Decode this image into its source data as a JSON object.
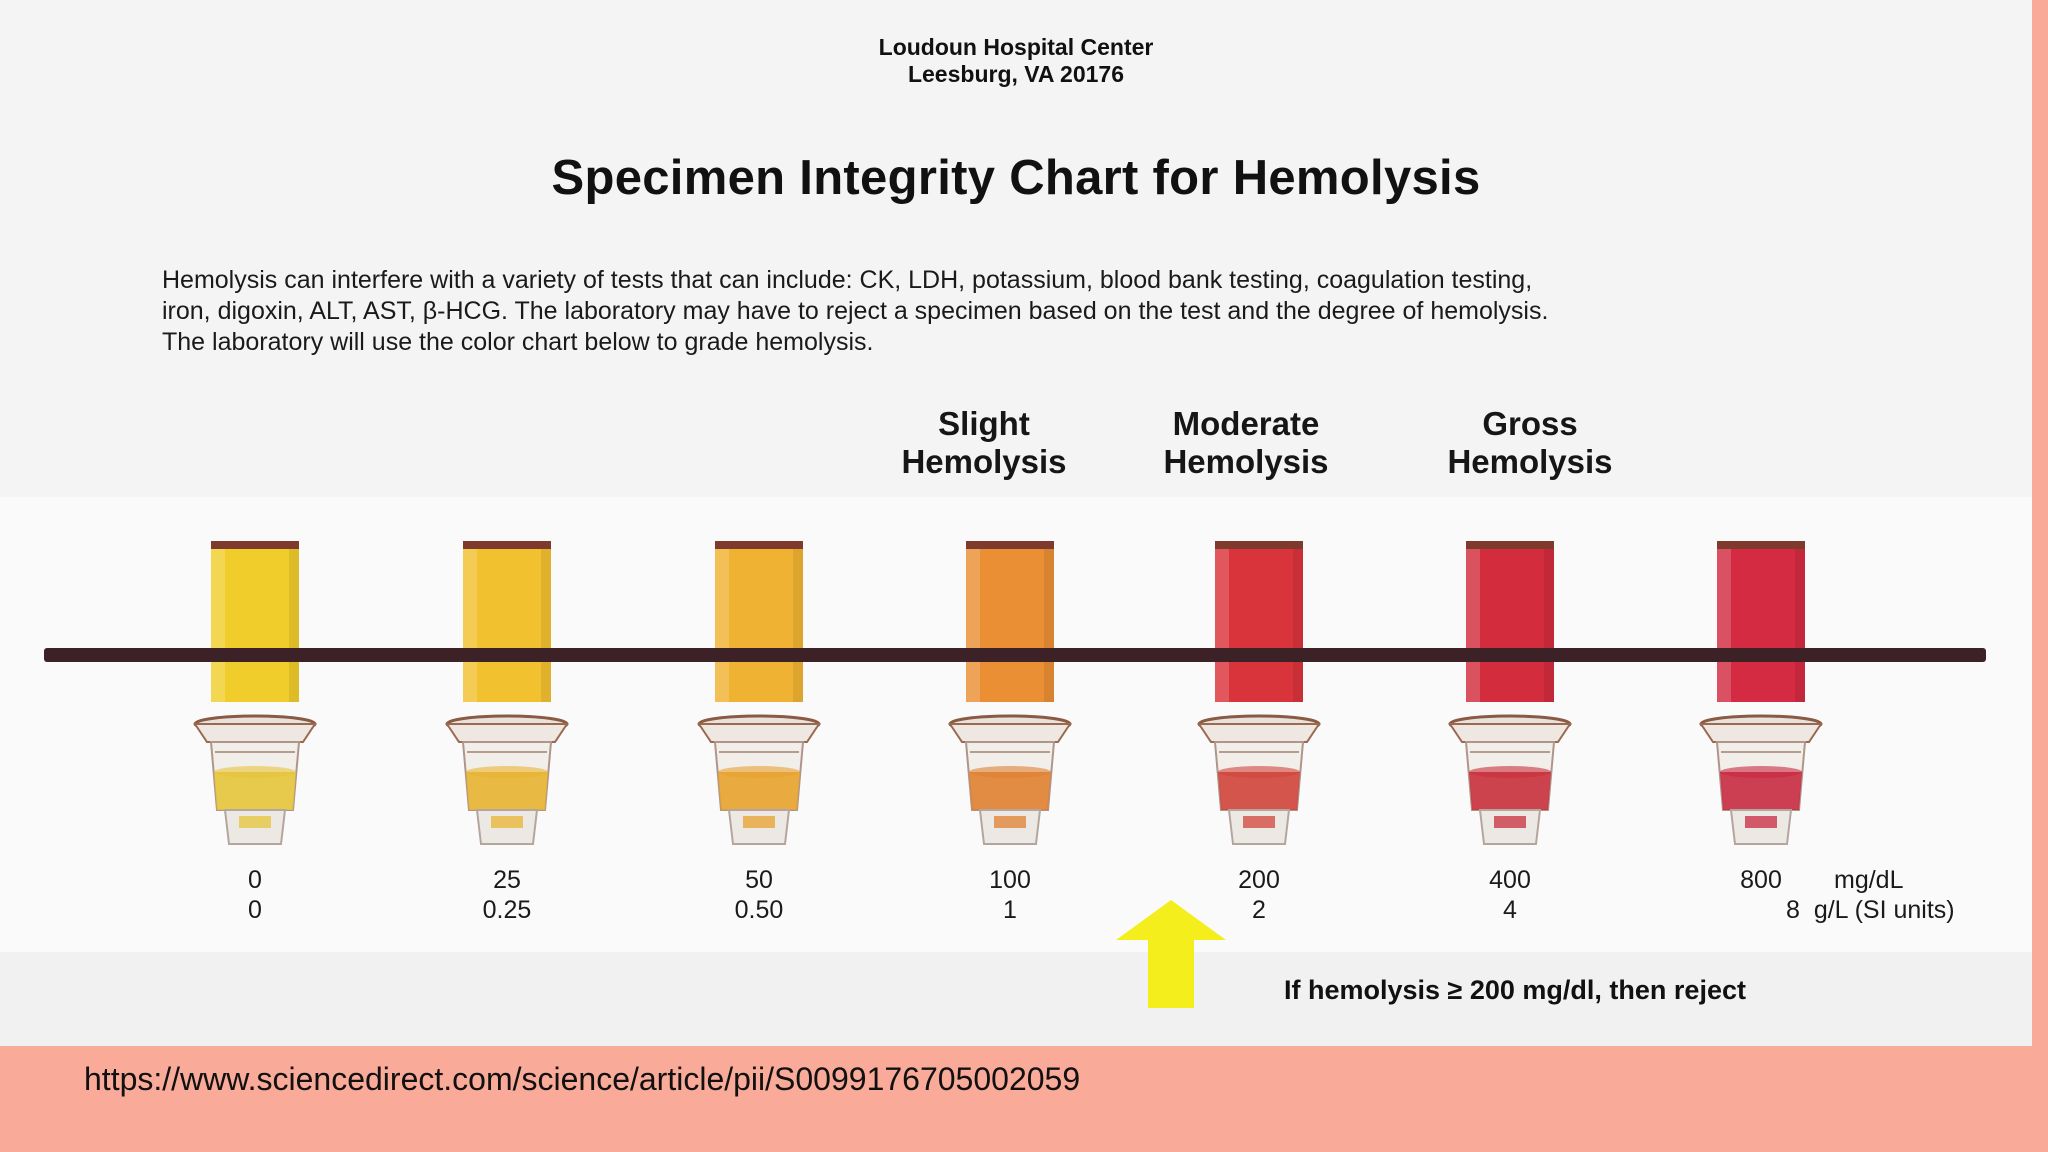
{
  "header": {
    "hospital_name": "Loudoun Hospital Center",
    "hospital_address": "Leesburg, VA 20176"
  },
  "title": "Specimen Integrity Chart for Hemolysis",
  "intro_lines": [
    "Hemolysis can interfere with a variety of tests that can include: CK, LDH, potassium, blood bank testing, coagulation testing,",
    "iron, digoxin, ALT, AST, β-HCG. The laboratory may have to reject a specimen based on the test and the degree of hemolysis.",
    "The laboratory will use the color chart below to grade hemolysis."
  ],
  "categories": [
    {
      "line1": "Slight",
      "line2": "Hemolysis"
    },
    {
      "line1": "Moderate",
      "line2": "Hemolysis"
    },
    {
      "line1": "Gross",
      "line2": "Hemolysis"
    }
  ],
  "samples": [
    {
      "mg_dl": "0",
      "si": "0",
      "color": "#f1cd2c",
      "liquid": "#e6c43a"
    },
    {
      "mg_dl": "25",
      "si": "0.25",
      "color": "#f2c130",
      "liquid": "#e8b431"
    },
    {
      "mg_dl": "50",
      "si": "0.50",
      "color": "#f0b232",
      "liquid": "#e8a22e"
    },
    {
      "mg_dl": "100",
      "si": "1",
      "color": "#ea8f34",
      "liquid": "#e08030"
    },
    {
      "mg_dl": "200",
      "si": "2",
      "color": "#d9333b",
      "liquid": "#d0443a"
    },
    {
      "mg_dl": "400",
      "si": "4",
      "color": "#d22c3d",
      "liquid": "#c8303c"
    },
    {
      "mg_dl": "800",
      "si": "8",
      "color": "#d42b42",
      "liquid": "#c82a40"
    }
  ],
  "units": {
    "mass": "mg/dL",
    "si": "g/L (SI units)"
  },
  "reject_note": "If hemolysis ≥ 200 mg/dl, then reject",
  "arrow_color": "#f3ee1c",
  "source_url": "https://www.sciencedirect.com/science/article/pii/S0099176705002059"
}
